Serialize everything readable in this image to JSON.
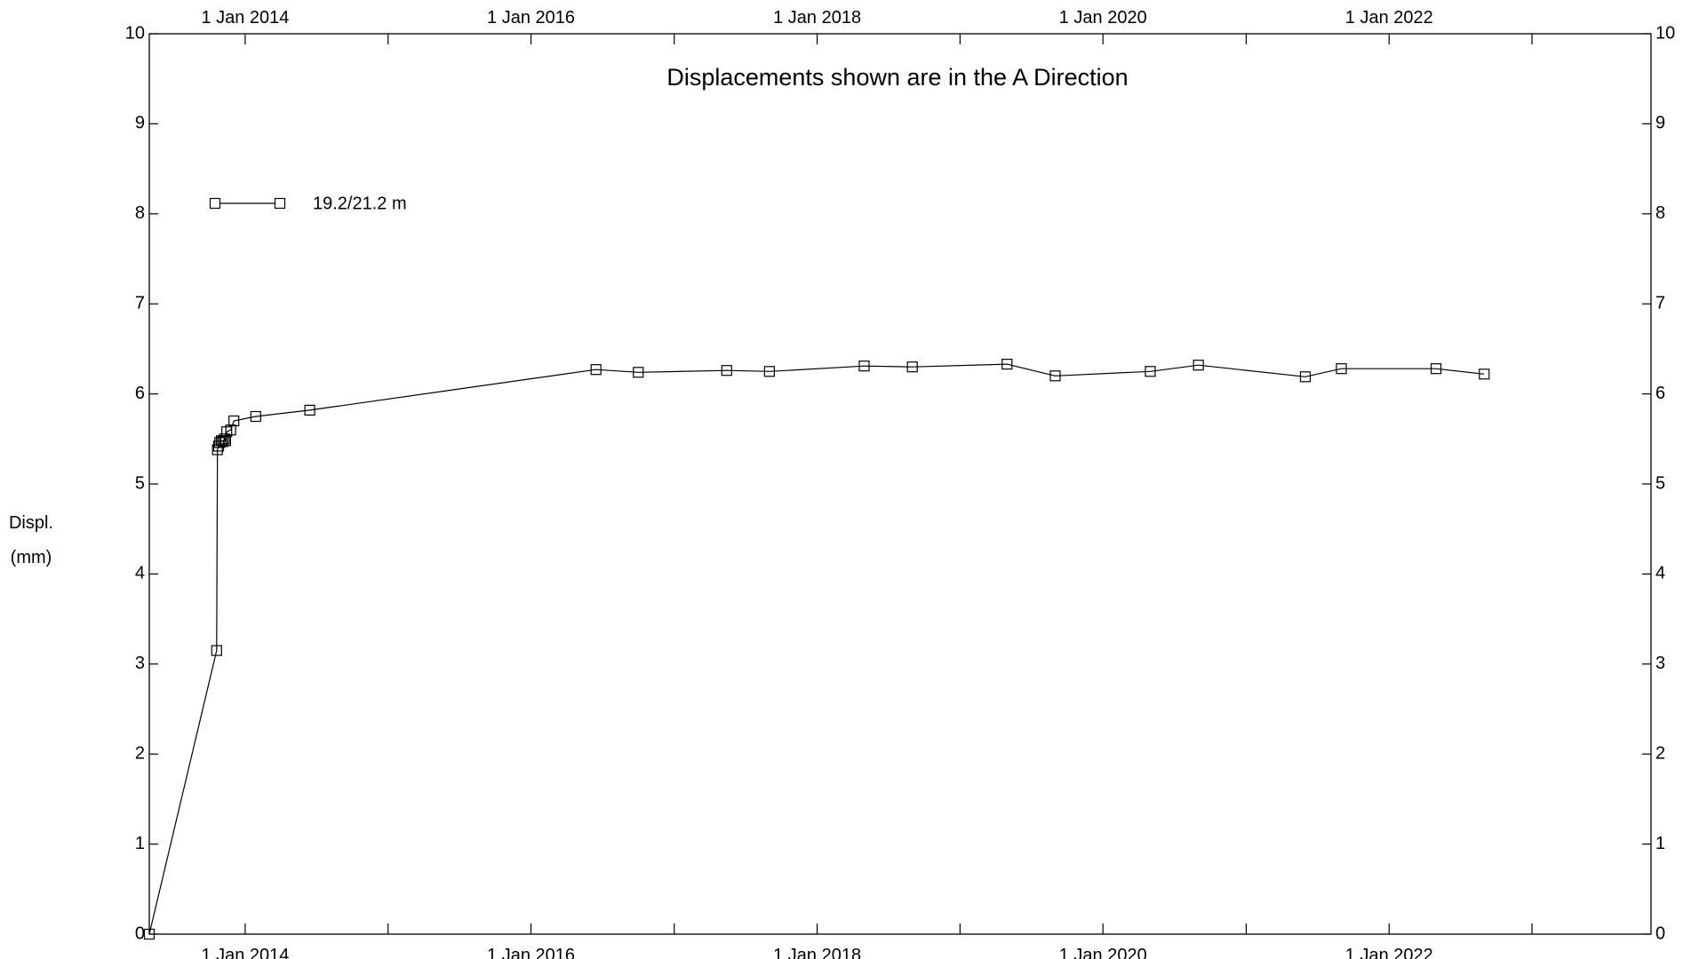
{
  "chart_data": {
    "type": "line",
    "title": "Displacements shown are in the  A Direction",
    "ylabel_line1": "Displ.",
    "ylabel_line2": "(mm)",
    "ylim": [
      0,
      10
    ],
    "y_ticks": [
      "0",
      "1",
      "2",
      "3",
      "4",
      "5",
      "6",
      "7",
      "8",
      "9",
      "10"
    ],
    "xlim": [
      "2013-05-01",
      "2023-11-01"
    ],
    "x_tick_labels": [
      {
        "date": "2014-01-01",
        "label": "1 Jan 2014"
      },
      {
        "date": "2016-01-01",
        "label": "1 Jan 2016"
      },
      {
        "date": "2018-01-01",
        "label": "1 Jan 2018"
      },
      {
        "date": "2020-01-01",
        "label": "1 Jan 2020"
      },
      {
        "date": "2022-01-01",
        "label": "1 Jan 2022"
      }
    ],
    "x_minor_ticks": [
      "2015-01-01",
      "2017-01-01",
      "2019-01-01",
      "2021-01-01",
      "2023-01-01"
    ],
    "grid": false,
    "legend_position": "top-left",
    "series": [
      {
        "name": "19.2/21.2 m",
        "marker": "square",
        "color": "#000000",
        "points": [
          {
            "x": "2013-05-01",
            "y": 0.0
          },
          {
            "x": "2013-10-20",
            "y": 3.15
          },
          {
            "x": "2013-10-22",
            "y": 5.38
          },
          {
            "x": "2013-10-25",
            "y": 5.42
          },
          {
            "x": "2013-10-28",
            "y": 5.46
          },
          {
            "x": "2013-11-01",
            "y": 5.48
          },
          {
            "x": "2013-11-05",
            "y": 5.47
          },
          {
            "x": "2013-11-09",
            "y": 5.5
          },
          {
            "x": "2013-11-12",
            "y": 5.48
          },
          {
            "x": "2013-11-15",
            "y": 5.58
          },
          {
            "x": "2013-11-25",
            "y": 5.6
          },
          {
            "x": "2013-12-03",
            "y": 5.7
          },
          {
            "x": "2014-01-28",
            "y": 5.75
          },
          {
            "x": "2014-06-15",
            "y": 5.82
          },
          {
            "x": "2016-06-15",
            "y": 6.27
          },
          {
            "x": "2016-10-01",
            "y": 6.24
          },
          {
            "x": "2017-05-15",
            "y": 6.26
          },
          {
            "x": "2017-09-01",
            "y": 6.25
          },
          {
            "x": "2018-05-01",
            "y": 6.31
          },
          {
            "x": "2018-09-01",
            "y": 6.3
          },
          {
            "x": "2019-05-01",
            "y": 6.33
          },
          {
            "x": "2019-09-01",
            "y": 6.2
          },
          {
            "x": "2020-05-01",
            "y": 6.25
          },
          {
            "x": "2020-09-01",
            "y": 6.32
          },
          {
            "x": "2021-06-01",
            "y": 6.19
          },
          {
            "x": "2021-09-01",
            "y": 6.28
          },
          {
            "x": "2022-05-01",
            "y": 6.28
          },
          {
            "x": "2022-09-01",
            "y": 6.22
          }
        ]
      }
    ]
  }
}
